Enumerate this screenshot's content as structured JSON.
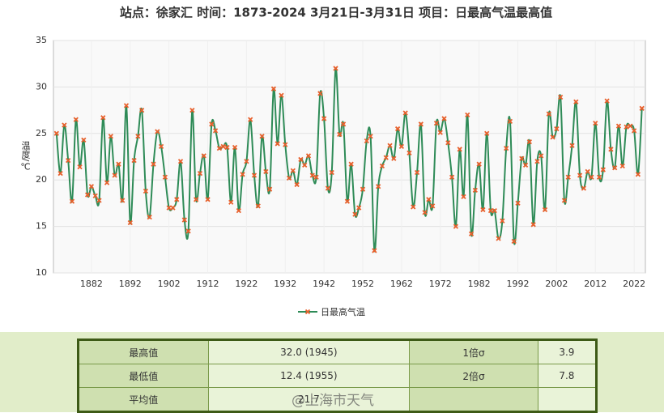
{
  "chart_data": {
    "type": "line",
    "title": "站点：徐家汇 时间：1873-2024  3月21日-3月31日 项目：日最高气温最高值",
    "y_label": "温度/℃",
    "x": [
      1873,
      1874,
      1875,
      1876,
      1877,
      1878,
      1879,
      1880,
      1881,
      1882,
      1883,
      1884,
      1885,
      1886,
      1887,
      1888,
      1889,
      1890,
      1891,
      1892,
      1893,
      1894,
      1895,
      1896,
      1897,
      1898,
      1899,
      1900,
      1901,
      1902,
      1903,
      1904,
      1905,
      1906,
      1907,
      1908,
      1909,
      1910,
      1911,
      1912,
      1913,
      1914,
      1915,
      1916,
      1917,
      1918,
      1919,
      1920,
      1921,
      1922,
      1923,
      1924,
      1925,
      1926,
      1927,
      1928,
      1929,
      1930,
      1931,
      1932,
      1933,
      1934,
      1935,
      1936,
      1937,
      1938,
      1939,
      1940,
      1941,
      1942,
      1943,
      1944,
      1945,
      1946,
      1947,
      1948,
      1949,
      1950,
      1951,
      1952,
      1953,
      1954,
      1955,
      1956,
      1957,
      1958,
      1959,
      1960,
      1961,
      1962,
      1963,
      1964,
      1965,
      1966,
      1967,
      1968,
      1969,
      1970,
      1971,
      1972,
      1973,
      1974,
      1975,
      1976,
      1977,
      1978,
      1979,
      1980,
      1981,
      1982,
      1983,
      1984,
      1985,
      1986,
      1987,
      1988,
      1989,
      1990,
      1991,
      1992,
      1993,
      1994,
      1995,
      1996,
      1997,
      1998,
      1999,
      2000,
      2001,
      2002,
      2003,
      2004,
      2005,
      2006,
      2007,
      2008,
      2009,
      2010,
      2011,
      2012,
      2013,
      2014,
      2015,
      2016,
      2017,
      2018,
      2019,
      2020,
      2021,
      2022,
      2023,
      2024
    ],
    "series": [
      {
        "name": "日最高气温",
        "color": "#2e8b57",
        "marker_color": "#e8602c",
        "values": [
          25.0,
          20.7,
          25.9,
          22.1,
          17.7,
          26.5,
          21.4,
          24.3,
          18.4,
          19.3,
          18.3,
          17.8,
          26.7,
          19.7,
          24.7,
          20.5,
          21.7,
          17.8,
          28.0,
          15.4,
          22.1,
          24.7,
          27.5,
          18.8,
          16.0,
          21.7,
          25.2,
          23.6,
          20.3,
          17.0,
          17.0,
          17.9,
          22.0,
          15.7,
          14.5,
          27.5,
          17.9,
          20.7,
          22.6,
          17.9,
          26.0,
          25.3,
          23.4,
          23.6,
          23.5,
          17.6,
          23.5,
          16.7,
          20.6,
          22.0,
          26.5,
          20.5,
          17.2,
          24.7,
          20.9,
          19.0,
          29.8,
          23.9,
          29.1,
          23.8,
          20.2,
          21.0,
          19.5,
          22.2,
          21.6,
          22.6,
          20.5,
          20.3,
          29.3,
          26.6,
          19.1,
          20.8,
          32.0,
          24.9,
          26.0,
          17.7,
          21.7,
          16.3,
          17.0,
          19.0,
          24.2,
          24.7,
          12.4,
          19.3,
          21.5,
          22.4,
          23.7,
          22.3,
          25.5,
          23.6,
          27.2,
          22.9,
          17.1,
          20.8,
          26.0,
          16.5,
          17.9,
          17.2,
          26.1,
          25.1,
          26.6,
          24.0,
          20.3,
          15.0,
          23.3,
          18.2,
          27.0,
          14.2,
          18.9,
          21.7,
          16.8,
          25.0,
          16.7,
          16.7,
          13.7,
          15.6,
          23.4,
          26.3,
          13.4,
          17.5,
          22.3,
          21.6,
          24.1,
          15.2,
          22.0,
          22.6,
          16.8,
          27.1,
          24.6,
          25.5,
          28.9,
          17.8,
          20.3,
          23.7,
          28.4,
          20.5,
          19.1,
          20.9,
          20.3,
          26.1,
          20.3,
          21.1,
          28.5,
          23.3,
          21.3,
          25.8,
          21.5,
          25.7,
          25.8,
          25.3,
          20.6,
          27.7
        ]
      }
    ],
    "xlim": [
      1872.2,
      2024.9
    ],
    "ylim": [
      10,
      35
    ],
    "xticks": [
      1882,
      1892,
      1902,
      1912,
      1922,
      1932,
      1942,
      1952,
      1962,
      1972,
      1982,
      1992,
      2002,
      2012,
      2022
    ],
    "yticks": [
      10,
      15,
      20,
      25,
      30,
      35
    ],
    "grid": true,
    "legend": "bottom"
  },
  "table": {
    "rows": [
      [
        "最高值",
        "32.0 (1945)",
        "1倍σ",
        "3.9"
      ],
      [
        "最低值",
        "12.4 (1955)",
        "2倍σ",
        "7.8"
      ],
      [
        "平均值",
        "21.7",
        "",
        ""
      ]
    ]
  },
  "watermark": "@上海市天气"
}
